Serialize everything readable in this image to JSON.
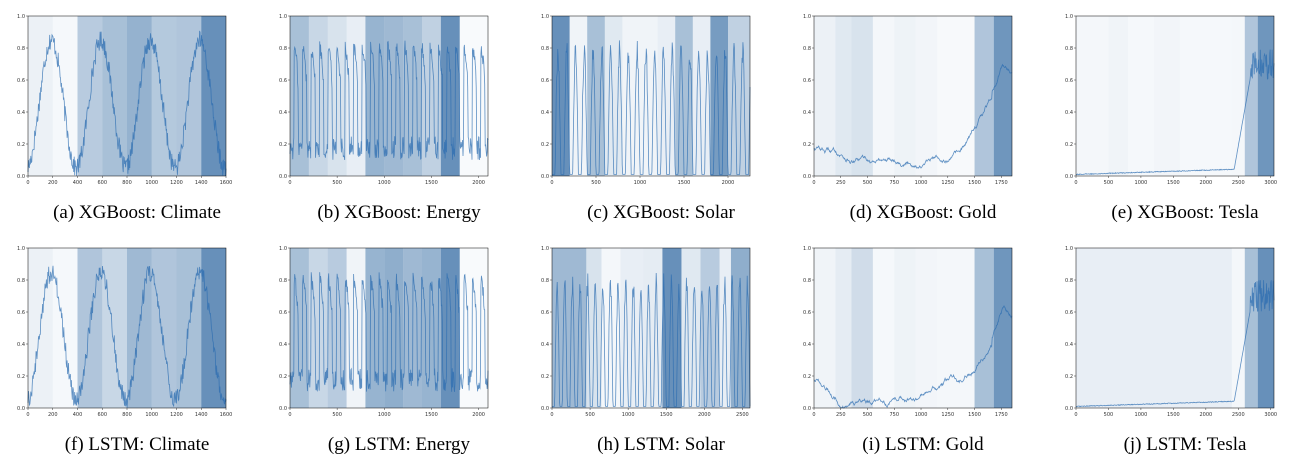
{
  "colors": {
    "shade_base": "#1f5c99",
    "line_base": "#2b6cb0",
    "line_light": "#9ecae1",
    "frame": "#000000"
  },
  "chart_data": [
    {
      "type": "line",
      "caption": "(a) XGBoost: Climate",
      "pattern": "climate",
      "xlim": [
        0,
        1600
      ],
      "ylim": [
        0,
        1.0
      ],
      "xticks": [
        0,
        200,
        400,
        600,
        800,
        1000,
        1200,
        1400,
        1600
      ],
      "yticks": [
        0.0,
        0.2,
        0.4,
        0.6,
        0.8,
        1.0
      ],
      "xticklabels": [
        "0",
        "200",
        "400",
        "600",
        "800",
        "1000",
        "1200",
        "1400",
        "1600"
      ],
      "yticklabels": [
        "0.0",
        "0.2",
        "0.4",
        "0.6",
        "0.8",
        "1.0"
      ],
      "segments": [
        {
          "start": 0,
          "end": 200,
          "level": 0.08
        },
        {
          "start": 200,
          "end": 400,
          "level": 0.02
        },
        {
          "start": 400,
          "end": 600,
          "level": 0.4
        },
        {
          "start": 600,
          "end": 800,
          "level": 0.5
        },
        {
          "start": 800,
          "end": 1000,
          "level": 0.62
        },
        {
          "start": 1000,
          "end": 1200,
          "level": 0.42
        },
        {
          "start": 1200,
          "end": 1400,
          "level": 0.45
        },
        {
          "start": 1400,
          "end": 1600,
          "level": 0.9
        }
      ]
    },
    {
      "type": "line",
      "caption": "(b) XGBoost: Energy",
      "pattern": "energy",
      "xlim": [
        0,
        2100
      ],
      "ylim": [
        0,
        1.0
      ],
      "xticks": [
        0,
        500,
        1000,
        1500,
        2000
      ],
      "yticks": [
        0.0,
        0.2,
        0.4,
        0.6,
        0.8,
        1.0
      ],
      "xticklabels": [
        "0",
        "500",
        "1000",
        "1500",
        "2000"
      ],
      "yticklabels": [
        "0.0",
        "0.2",
        "0.4",
        "0.6",
        "0.8",
        "1.0"
      ],
      "segments": [
        {
          "start": 0,
          "end": 200,
          "level": 0.5
        },
        {
          "start": 200,
          "end": 400,
          "level": 0.3
        },
        {
          "start": 400,
          "end": 600,
          "level": 0.2
        },
        {
          "start": 600,
          "end": 800,
          "level": 0.1
        },
        {
          "start": 800,
          "end": 1000,
          "level": 0.6
        },
        {
          "start": 1000,
          "end": 1200,
          "level": 0.55
        },
        {
          "start": 1200,
          "end": 1400,
          "level": 0.5
        },
        {
          "start": 1400,
          "end": 1600,
          "level": 0.35
        },
        {
          "start": 1600,
          "end": 1800,
          "level": 0.9
        },
        {
          "start": 1800,
          "end": 2100,
          "level": 0.0
        }
      ]
    },
    {
      "type": "line",
      "caption": "(c) XGBoost: Solar",
      "pattern": "solar",
      "xlim": [
        0,
        2250
      ],
      "ylim": [
        0,
        1.0
      ],
      "xticks": [
        0,
        500,
        1000,
        1500,
        2000
      ],
      "yticks": [
        0.0,
        0.2,
        0.4,
        0.6,
        0.8,
        1.0
      ],
      "xticklabels": [
        "0",
        "500",
        "1000",
        "1500",
        "2000"
      ],
      "yticklabels": [
        "0.0",
        "0.2",
        "0.4",
        "0.6",
        "0.8",
        "1.0"
      ],
      "segments": [
        {
          "start": 0,
          "end": 200,
          "level": 0.9
        },
        {
          "start": 200,
          "end": 400,
          "level": 0.05
        },
        {
          "start": 400,
          "end": 600,
          "level": 0.5
        },
        {
          "start": 600,
          "end": 800,
          "level": 0.15
        },
        {
          "start": 800,
          "end": 1000,
          "level": 0.05
        },
        {
          "start": 1000,
          "end": 1200,
          "level": 0.05
        },
        {
          "start": 1200,
          "end": 1400,
          "level": 0.1
        },
        {
          "start": 1400,
          "end": 1600,
          "level": 0.5
        },
        {
          "start": 1600,
          "end": 1800,
          "level": 0.1
        },
        {
          "start": 1800,
          "end": 2000,
          "level": 0.8
        },
        {
          "start": 2000,
          "end": 2250,
          "level": 0.35
        }
      ]
    },
    {
      "type": "line",
      "caption": "(d) XGBoost: Gold",
      "pattern": "gold",
      "xlim": [
        0,
        1850
      ],
      "ylim": [
        0,
        1.0
      ],
      "xticks": [
        0,
        250,
        500,
        750,
        1000,
        1250,
        1500,
        1750
      ],
      "yticks": [
        0.0,
        0.2,
        0.4,
        0.6,
        0.8,
        1.0
      ],
      "xticklabels": [
        "0",
        "250",
        "500",
        "750",
        "1000",
        "1250",
        "1500",
        "1750"
      ],
      "yticklabels": [
        "0.0",
        "0.2",
        "0.4",
        "0.6",
        "0.8",
        "1.0"
      ],
      "segments": [
        {
          "start": 0,
          "end": 200,
          "level": 0.08
        },
        {
          "start": 200,
          "end": 350,
          "level": 0.15
        },
        {
          "start": 350,
          "end": 550,
          "level": 0.2
        },
        {
          "start": 550,
          "end": 750,
          "level": 0.03
        },
        {
          "start": 750,
          "end": 950,
          "level": 0.06
        },
        {
          "start": 950,
          "end": 1150,
          "level": 0.04
        },
        {
          "start": 1150,
          "end": 1500,
          "level": 0.01
        },
        {
          "start": 1500,
          "end": 1680,
          "level": 0.45
        },
        {
          "start": 1680,
          "end": 1850,
          "level": 0.85
        }
      ]
    },
    {
      "type": "line",
      "caption": "(e) XGBoost: Tesla",
      "pattern": "tesla",
      "xlim": [
        0,
        3050
      ],
      "ylim": [
        0,
        1.0
      ],
      "xticks": [
        0,
        500,
        1000,
        1500,
        2000,
        2500,
        3000
      ],
      "yticks": [
        0.0,
        0.2,
        0.4,
        0.6,
        0.8,
        1.0
      ],
      "xticklabels": [
        "0",
        "500",
        "1000",
        "1500",
        "2000",
        "2500",
        "3000"
      ],
      "yticklabels": [
        "0.0",
        "0.2",
        "0.4",
        "0.6",
        "0.8",
        "1.0"
      ],
      "segments": [
        {
          "start": 0,
          "end": 500,
          "level": 0.03
        },
        {
          "start": 500,
          "end": 800,
          "level": 0.05
        },
        {
          "start": 800,
          "end": 1200,
          "level": 0.02
        },
        {
          "start": 1200,
          "end": 1600,
          "level": 0.04
        },
        {
          "start": 1600,
          "end": 2000,
          "level": 0.02
        },
        {
          "start": 2000,
          "end": 2400,
          "level": 0.02
        },
        {
          "start": 2400,
          "end": 2600,
          "level": 0.03
        },
        {
          "start": 2600,
          "end": 2800,
          "level": 0.45
        },
        {
          "start": 2800,
          "end": 3050,
          "level": 0.85
        }
      ]
    },
    {
      "type": "line",
      "caption": "(f) LSTM: Climate",
      "pattern": "climate",
      "xlim": [
        0,
        1600
      ],
      "ylim": [
        0,
        1.0
      ],
      "xticks": [
        0,
        200,
        400,
        600,
        800,
        1000,
        1200,
        1400,
        1600
      ],
      "yticks": [
        0.0,
        0.2,
        0.4,
        0.6,
        0.8,
        1.0
      ],
      "xticklabels": [
        "0",
        "200",
        "400",
        "600",
        "800",
        "1000",
        "1200",
        "1400",
        "1600"
      ],
      "yticklabels": [
        "0.0",
        "0.2",
        "0.4",
        "0.6",
        "0.8",
        "1.0"
      ],
      "segments": [
        {
          "start": 0,
          "end": 200,
          "level": 0.08
        },
        {
          "start": 200,
          "end": 400,
          "level": 0.02
        },
        {
          "start": 400,
          "end": 600,
          "level": 0.45
        },
        {
          "start": 600,
          "end": 800,
          "level": 0.3
        },
        {
          "start": 800,
          "end": 1000,
          "level": 0.55
        },
        {
          "start": 1000,
          "end": 1200,
          "level": 0.45
        },
        {
          "start": 1200,
          "end": 1400,
          "level": 0.5
        },
        {
          "start": 1400,
          "end": 1600,
          "level": 0.9
        }
      ]
    },
    {
      "type": "line",
      "caption": "(g) LSTM: Energy",
      "pattern": "energy",
      "xlim": [
        0,
        2100
      ],
      "ylim": [
        0,
        1.0
      ],
      "xticks": [
        0,
        500,
        1000,
        1500,
        2000
      ],
      "yticks": [
        0.0,
        0.2,
        0.4,
        0.6,
        0.8,
        1.0
      ],
      "xticklabels": [
        "0",
        "500",
        "1000",
        "1500",
        "2000"
      ],
      "yticklabels": [
        "0.0",
        "0.2",
        "0.4",
        "0.6",
        "0.8",
        "1.0"
      ],
      "segments": [
        {
          "start": 0,
          "end": 200,
          "level": 0.5
        },
        {
          "start": 200,
          "end": 400,
          "level": 0.3
        },
        {
          "start": 400,
          "end": 600,
          "level": 0.4
        },
        {
          "start": 600,
          "end": 800,
          "level": 0.05
        },
        {
          "start": 800,
          "end": 1000,
          "level": 0.6
        },
        {
          "start": 1000,
          "end": 1200,
          "level": 0.65
        },
        {
          "start": 1200,
          "end": 1400,
          "level": 0.55
        },
        {
          "start": 1400,
          "end": 1600,
          "level": 0.6
        },
        {
          "start": 1600,
          "end": 1800,
          "level": 0.9
        },
        {
          "start": 1800,
          "end": 2100,
          "level": 0.0
        }
      ]
    },
    {
      "type": "line",
      "caption": "(h) LSTM: Solar",
      "pattern": "solar",
      "xlim": [
        0,
        2600
      ],
      "ylim": [
        0,
        1.0
      ],
      "xticks": [
        0,
        500,
        1000,
        1500,
        2000,
        2500
      ],
      "yticks": [
        0.0,
        0.2,
        0.4,
        0.6,
        0.8,
        1.0
      ],
      "xticklabels": [
        "0",
        "500",
        "1000",
        "1500",
        "2000",
        "2500"
      ],
      "yticklabels": [
        "0.0",
        "0.2",
        "0.4",
        "0.6",
        "0.8",
        "1.0"
      ],
      "segments": [
        {
          "start": 0,
          "end": 450,
          "level": 0.55
        },
        {
          "start": 450,
          "end": 650,
          "level": 0.2
        },
        {
          "start": 650,
          "end": 900,
          "level": 0.03
        },
        {
          "start": 900,
          "end": 1200,
          "level": 0.1
        },
        {
          "start": 1200,
          "end": 1450,
          "level": 0.12
        },
        {
          "start": 1450,
          "end": 1700,
          "level": 0.9
        },
        {
          "start": 1700,
          "end": 1950,
          "level": 0.15
        },
        {
          "start": 1950,
          "end": 2200,
          "level": 0.4
        },
        {
          "start": 2200,
          "end": 2350,
          "level": 0.1
        },
        {
          "start": 2350,
          "end": 2600,
          "level": 0.65
        }
      ]
    },
    {
      "type": "line",
      "caption": "(i) LSTM: Gold",
      "pattern": "gold",
      "xlim": [
        0,
        1850
      ],
      "ylim": [
        0,
        1.0
      ],
      "xticks": [
        0,
        250,
        500,
        750,
        1000,
        1250,
        1500,
        1750
      ],
      "yticks": [
        0.0,
        0.2,
        0.4,
        0.6,
        0.8,
        1.0
      ],
      "xticklabels": [
        "0",
        "250",
        "500",
        "750",
        "1000",
        "1250",
        "1500",
        "1750"
      ],
      "yticklabels": [
        "0.0",
        "0.2",
        "0.4",
        "0.6",
        "0.8",
        "1.0"
      ],
      "segments": [
        {
          "start": 0,
          "end": 200,
          "level": 0.05
        },
        {
          "start": 200,
          "end": 350,
          "level": 0.12
        },
        {
          "start": 350,
          "end": 550,
          "level": 0.25
        },
        {
          "start": 550,
          "end": 750,
          "level": 0.02
        },
        {
          "start": 750,
          "end": 950,
          "level": 0.06
        },
        {
          "start": 950,
          "end": 1150,
          "level": 0.04
        },
        {
          "start": 1150,
          "end": 1500,
          "level": 0.03
        },
        {
          "start": 1500,
          "end": 1680,
          "level": 0.5
        },
        {
          "start": 1680,
          "end": 1850,
          "level": 0.85
        }
      ]
    },
    {
      "type": "line",
      "caption": "(j) LSTM: Tesla",
      "pattern": "tesla",
      "xlim": [
        0,
        3050
      ],
      "ylim": [
        0,
        1.0
      ],
      "xticks": [
        0,
        500,
        1000,
        1500,
        2000,
        2500,
        3000
      ],
      "yticks": [
        0.0,
        0.2,
        0.4,
        0.6,
        0.8,
        1.0
      ],
      "xticklabels": [
        "0",
        "500",
        "1000",
        "1500",
        "2000",
        "2500",
        "3000"
      ],
      "yticklabels": [
        "0.0",
        "0.2",
        "0.4",
        "0.6",
        "0.8",
        "1.0"
      ],
      "segments": [
        {
          "start": 0,
          "end": 2400,
          "level": 0.1
        },
        {
          "start": 2400,
          "end": 2600,
          "level": 0.03
        },
        {
          "start": 2600,
          "end": 2800,
          "level": 0.5
        },
        {
          "start": 2800,
          "end": 3050,
          "level": 0.9
        }
      ]
    }
  ]
}
